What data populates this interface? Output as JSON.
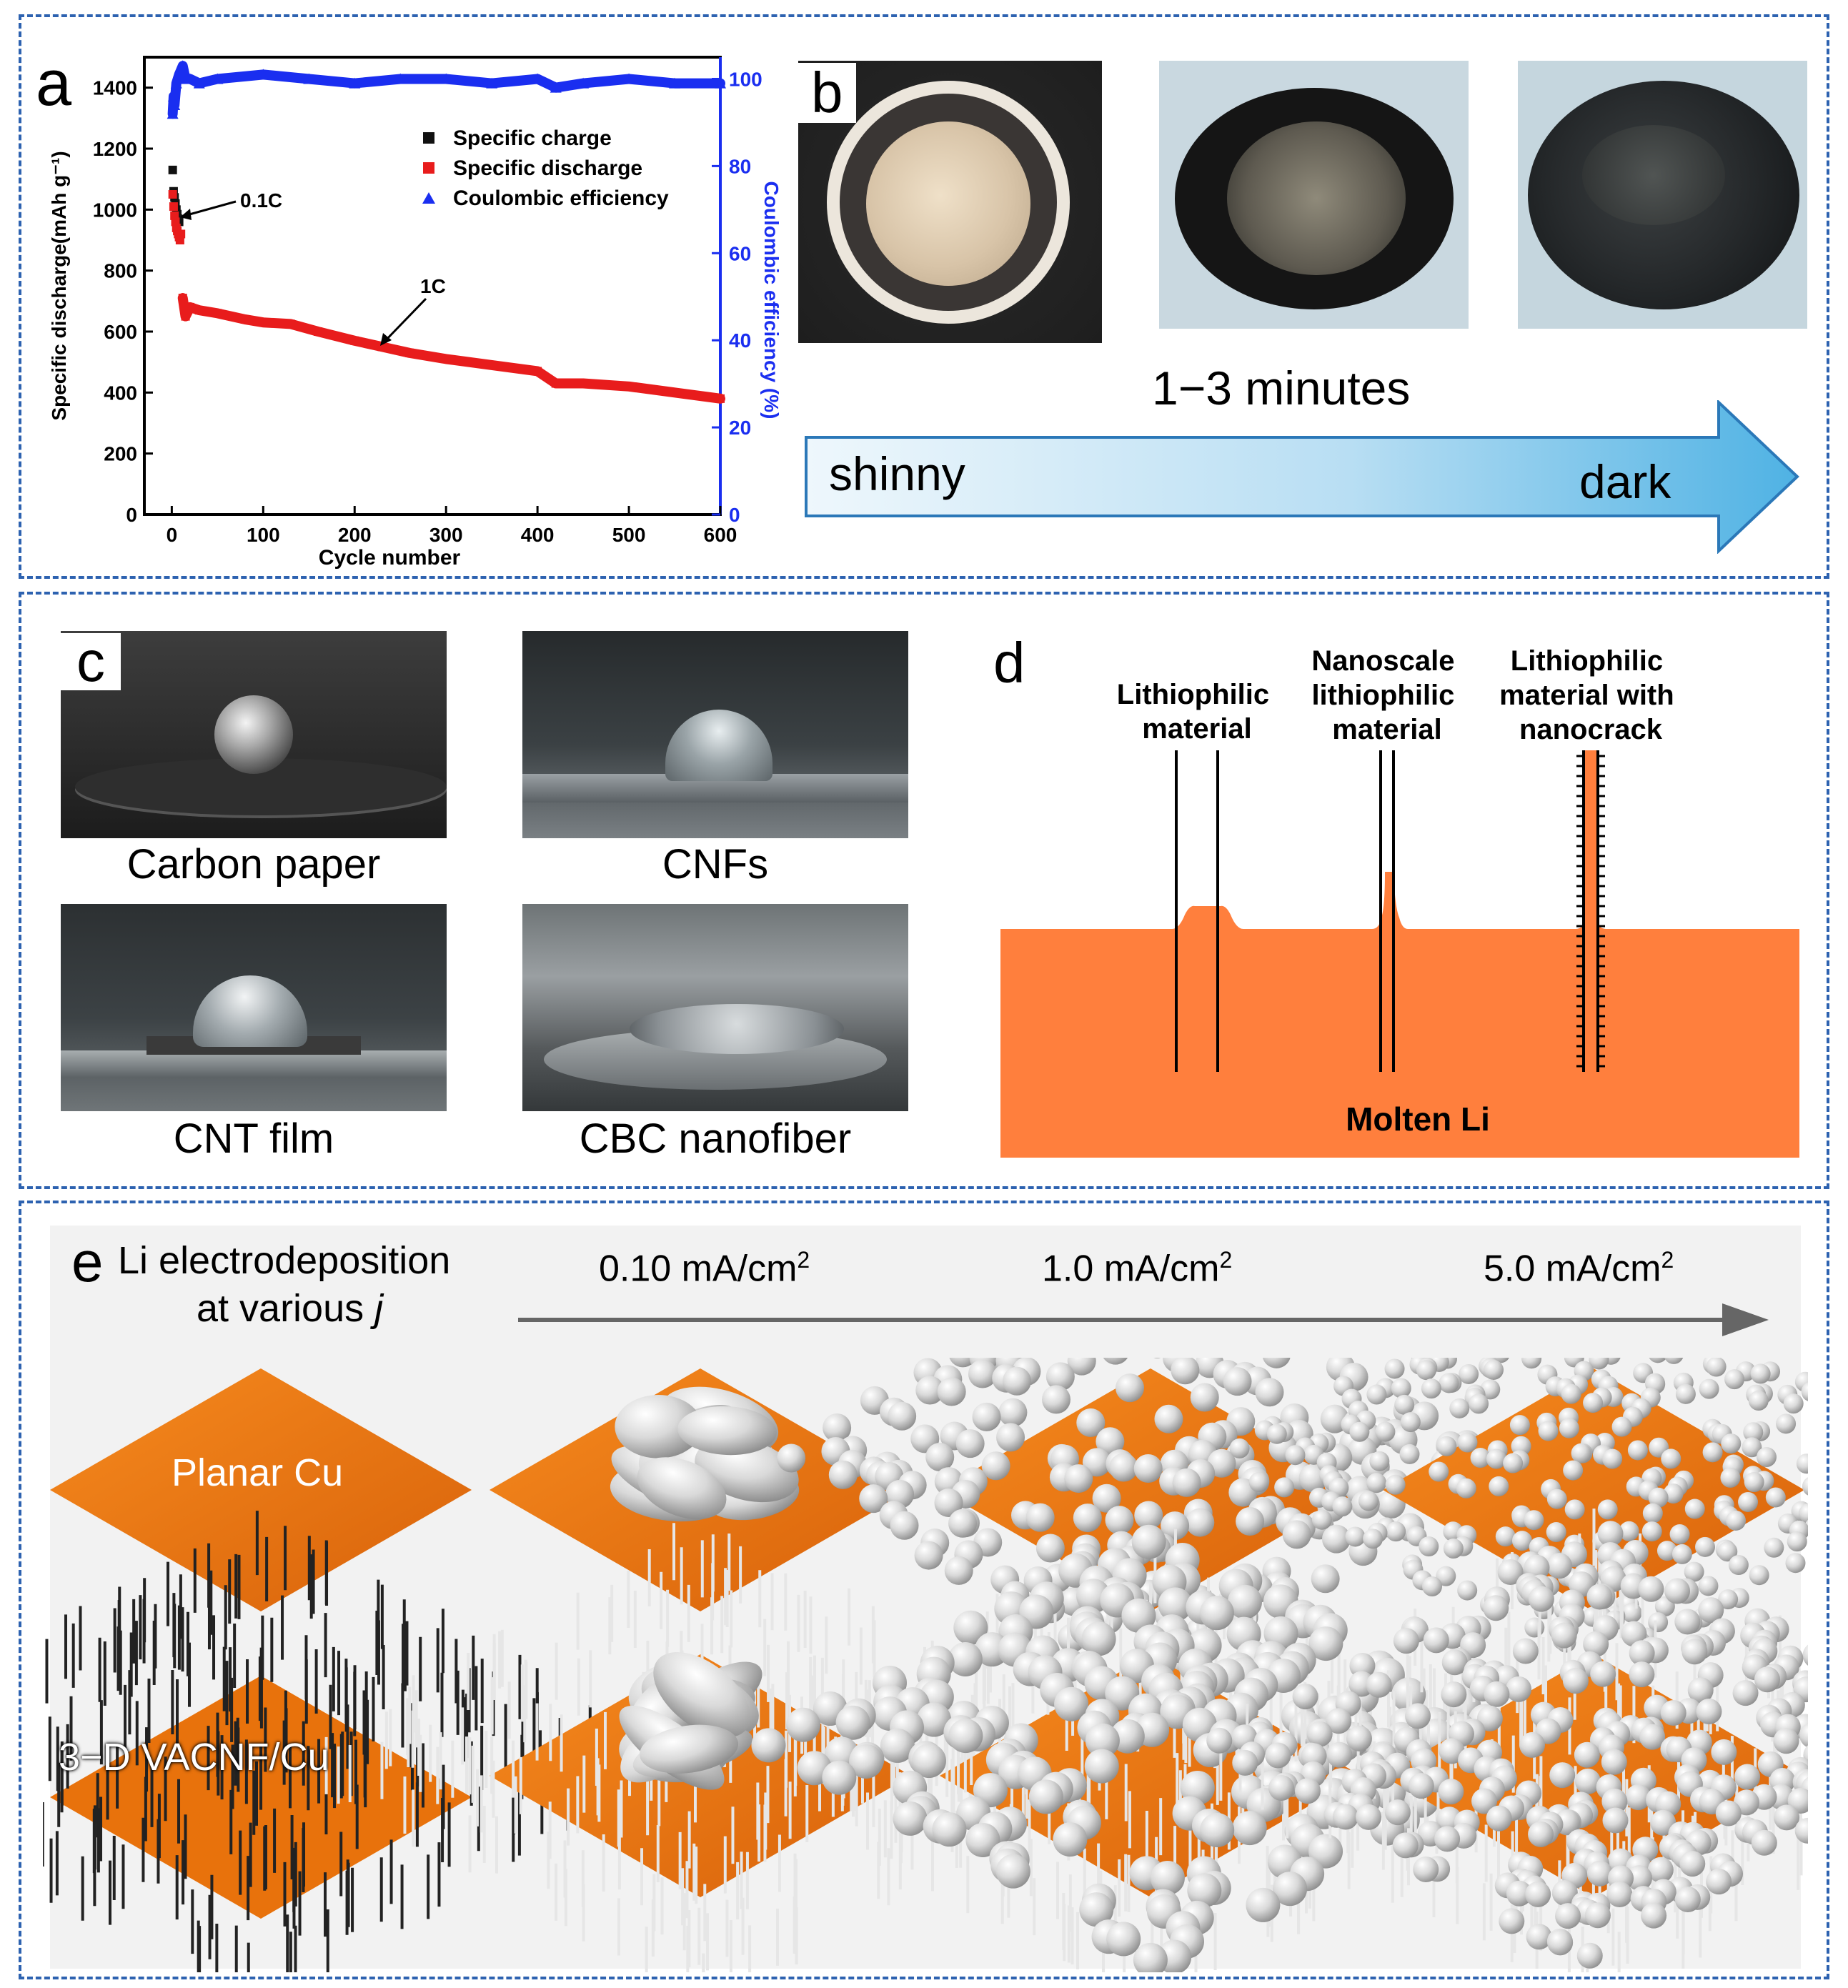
{
  "panels": {
    "a": {
      "letter": "a",
      "legend": [
        "Specific charge",
        "Specific discharge",
        "Coulombic efficiency"
      ],
      "annotations": {
        "low_rate": "0.1C",
        "high_rate": "1C"
      }
    },
    "b": {
      "letter": "b",
      "time_label": "1−3 minutes",
      "arrow_start": "shinny",
      "arrow_end": "dark"
    },
    "c": {
      "letter": "c",
      "photos": [
        "Carbon paper",
        "CNFs",
        "CNT film",
        "CBC nanofiber"
      ]
    },
    "d": {
      "letter": "d",
      "labels": [
        "Lithiophilic material",
        "Nanoscale lithiophilic material",
        "Lithiophilic material with nanocrack"
      ],
      "label_lines": [
        [
          "Lithiophilic",
          "material"
        ],
        [
          "Nanoscale",
          "lithiophilic",
          "material"
        ],
        [
          "Lithiophilic",
          "material with",
          "nanocrack"
        ]
      ],
      "bottom_label": "Molten Li"
    },
    "e": {
      "letter": "e",
      "title_line1": "Li electrodeposition",
      "title_line2": "at various",
      "title_var": "j",
      "currents": [
        {
          "value": "0.10 mA/cm",
          "exp": "2"
        },
        {
          "value": "1.0 mA/cm",
          "exp": "2"
        },
        {
          "value": "5.0 mA/cm",
          "exp": "2"
        }
      ],
      "row_labels": [
        "Planar Cu",
        "3−D VACNF/Cu"
      ]
    }
  },
  "colors": {
    "border": "#2d62b0",
    "charge": "#111111",
    "discharge": "#e81c1c",
    "efficiency": "#1a2ef0",
    "molten_li": "#ff7f3d",
    "copper": "#f07a10"
  },
  "chart_data": {
    "type": "scatter",
    "xlabel": "Cycle number",
    "ylabel": "Specific discharge(mAh g⁻¹)",
    "y2label": "Coulombic efficiency (%)",
    "xlim": [
      -30,
      600
    ],
    "ylim": [
      0,
      1500
    ],
    "y2lim": [
      0,
      105
    ],
    "xticks": [
      0,
      100,
      200,
      300,
      400,
      500,
      600
    ],
    "yticks": [
      0,
      200,
      400,
      600,
      800,
      1000,
      1200,
      1400
    ],
    "y2ticks": [
      0,
      20,
      40,
      60,
      80,
      100
    ],
    "series": [
      {
        "name": "Specific charge",
        "axis": "left",
        "marker": "square",
        "x": [
          1,
          2,
          3,
          4,
          5,
          6,
          7,
          8
        ],
        "y": [
          1130,
          1060,
          1040,
          1020,
          1000,
          985,
          970,
          960
        ]
      },
      {
        "name": "Specific discharge",
        "axis": "left",
        "marker": "square",
        "x": [
          1,
          2,
          3,
          4,
          5,
          6,
          7,
          8,
          9,
          10,
          12,
          15,
          20,
          30,
          50,
          80,
          100,
          130,
          160,
          200,
          230,
          260,
          300,
          350,
          400,
          420,
          450,
          500,
          550,
          600
        ],
        "y": [
          1050,
          1010,
          980,
          960,
          940,
          930,
          920,
          910,
          900,
          920,
          710,
          650,
          680,
          670,
          660,
          640,
          630,
          625,
          600,
          570,
          550,
          530,
          510,
          490,
          470,
          430,
          430,
          420,
          400,
          380
        ]
      },
      {
        "name": "Coulombic efficiency",
        "axis": "right",
        "marker": "triangle",
        "x": [
          1,
          2,
          3,
          5,
          8,
          10,
          12,
          15,
          20,
          30,
          50,
          100,
          150,
          200,
          250,
          300,
          350,
          400,
          420,
          450,
          500,
          550,
          600
        ],
        "y": [
          92,
          96,
          94,
          99,
          101,
          102,
          103,
          100,
          100,
          99,
          100,
          101,
          100,
          99,
          100,
          100,
          99,
          100,
          98,
          99,
          100,
          99,
          99
        ]
      }
    ]
  }
}
